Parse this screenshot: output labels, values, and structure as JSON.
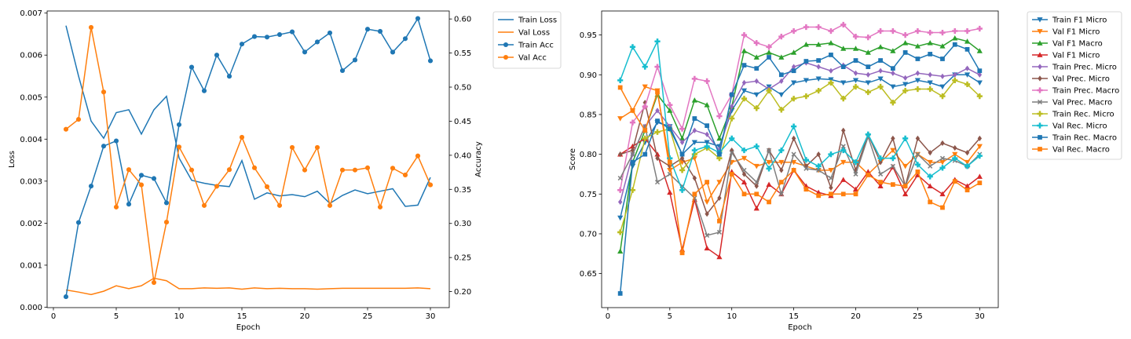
{
  "chart_data": [
    {
      "type": "line",
      "xlabel": "Epoch",
      "ylabel": "Loss",
      "y2label": "Accuracy",
      "xlim": [
        -0.5,
        31.5
      ],
      "ylim": [
        -1e-05,
        0.00705
      ],
      "y2lim": [
        0.1765,
        0.6117
      ],
      "xticks": [
        0,
        5,
        10,
        15,
        20,
        25,
        30
      ],
      "xtick_labels": [
        "0",
        "5",
        "10",
        "15",
        "20",
        "25",
        "30"
      ],
      "yticks": [
        0.0,
        0.001,
        0.002,
        0.003,
        0.004,
        0.005,
        0.006,
        0.007
      ],
      "ytick_labels": [
        "0.000",
        "0.001",
        "0.002",
        "0.003",
        "0.004",
        "0.005",
        "0.006",
        "0.007"
      ],
      "y2ticks": [
        0.2,
        0.25,
        0.3,
        0.35,
        0.4,
        0.45,
        0.5,
        0.55,
        0.6
      ],
      "y2tick_labels": [
        "0.20",
        "0.25",
        "0.30",
        "0.35",
        "0.40",
        "0.45",
        "0.50",
        "0.55",
        "0.60"
      ],
      "grid": false,
      "legend_position": "outside-right",
      "x": [
        1,
        2,
        3,
        4,
        5,
        6,
        7,
        8,
        9,
        10,
        11,
        12,
        13,
        14,
        15,
        16,
        17,
        18,
        19,
        20,
        21,
        22,
        23,
        24,
        25,
        26,
        27,
        28,
        29,
        30
      ],
      "series": [
        {
          "name": "Train Loss",
          "axis": "left",
          "color": "#1f77b4",
          "marker": "none",
          "values": [
            0.0067,
            0.0055,
            0.00443,
            0.00402,
            0.00463,
            0.0047,
            0.00412,
            0.0047,
            0.00502,
            0.00355,
            0.00302,
            0.00295,
            0.0029,
            0.00287,
            0.00349,
            0.00257,
            0.00272,
            0.00265,
            0.00268,
            0.00263,
            0.00276,
            0.00247,
            0.00266,
            0.00279,
            0.0027,
            0.00276,
            0.00282,
            0.0024,
            0.00243,
            0.00309
          ]
        },
        {
          "name": "Val Loss",
          "axis": "left",
          "color": "#ff7f0e",
          "marker": "none",
          "values": [
            0.00041,
            0.00036,
            0.0003,
            0.00038,
            0.00051,
            0.00044,
            0.00051,
            0.00069,
            0.00063,
            0.00044,
            0.00044,
            0.00046,
            0.00045,
            0.00046,
            0.00043,
            0.00046,
            0.00044,
            0.00045,
            0.00044,
            0.00044,
            0.00043,
            0.00044,
            0.00045,
            0.00045,
            0.00045,
            0.00045,
            0.00045,
            0.00045,
            0.00046,
            0.00044
          ]
        },
        {
          "name": "Train Acc",
          "axis": "right",
          "color": "#1f77b4",
          "marker": "circle",
          "values": [
            0.1925,
            0.3014,
            0.3548,
            0.4135,
            0.4211,
            0.3283,
            0.3707,
            0.3659,
            0.3302,
            0.4449,
            0.5293,
            0.4946,
            0.547,
            0.5159,
            0.5632,
            0.5742,
            0.5734,
            0.5771,
            0.5811,
            0.5515,
            0.5663,
            0.5796,
            0.5242,
            0.5398,
            0.585,
            0.5818,
            0.5513,
            0.5711,
            0.6007,
            0.5386
          ]
        },
        {
          "name": "Val Acc",
          "axis": "right",
          "color": "#ff7f0e",
          "marker": "circle",
          "values": [
            0.4382,
            0.4527,
            0.5876,
            0.4929,
            0.324,
            0.3789,
            0.3566,
            0.2133,
            0.3019,
            0.4122,
            0.3784,
            0.3263,
            0.3545,
            0.3789,
            0.4264,
            0.3816,
            0.3539,
            0.3263,
            0.4115,
            0.3784,
            0.4115,
            0.3263,
            0.3784,
            0.3784,
            0.3816,
            0.324,
            0.3811,
            0.3711,
            0.3991,
            0.3566
          ]
        }
      ]
    },
    {
      "type": "line",
      "xlabel": "Epoch",
      "ylabel": "Score",
      "xlim": [
        -0.5,
        31.5
      ],
      "ylim": [
        0.6072,
        0.9802
      ],
      "xticks": [
        0,
        5,
        10,
        15,
        20,
        25,
        30
      ],
      "xtick_labels": [
        "0",
        "5",
        "10",
        "15",
        "20",
        "25",
        "30"
      ],
      "yticks": [
        0.65,
        0.7,
        0.75,
        0.8,
        0.85,
        0.9,
        0.95
      ],
      "ytick_labels": [
        "0.65",
        "0.70",
        "0.75",
        "0.80",
        "0.85",
        "0.90",
        "0.95"
      ],
      "grid": false,
      "legend_position": "outside-right",
      "x": [
        1,
        2,
        3,
        4,
        5,
        6,
        7,
        8,
        9,
        10,
        11,
        12,
        13,
        14,
        15,
        16,
        17,
        18,
        19,
        20,
        21,
        22,
        23,
        24,
        25,
        26,
        27,
        28,
        29,
        30
      ],
      "series": [
        {
          "name": "Train F1 Micro",
          "color": "#1f77b4",
          "marker": "tri-down",
          "values": [
            0.72,
            0.785,
            0.815,
            0.84,
            0.835,
            0.8,
            0.815,
            0.815,
            0.81,
            0.855,
            0.88,
            0.875,
            0.885,
            0.875,
            0.89,
            0.893,
            0.895,
            0.894,
            0.89,
            0.893,
            0.89,
            0.895,
            0.885,
            0.888,
            0.893,
            0.89,
            0.885,
            0.9,
            0.9,
            0.89
          ]
        },
        {
          "name": "Val F1 Micro",
          "color": "#ff7f0e",
          "marker": "tri-down",
          "values": [
            0.845,
            0.855,
            0.885,
            0.88,
            0.78,
            0.79,
            0.795,
            0.74,
            0.765,
            0.79,
            0.795,
            0.785,
            0.79,
            0.79,
            0.79,
            0.785,
            0.78,
            0.78,
            0.79,
            0.79,
            0.775,
            0.79,
            0.805,
            0.785,
            0.8,
            0.79,
            0.79,
            0.8,
            0.79,
            0.81
          ]
        },
        {
          "name": "Val F1 Macro",
          "color": "#2ca02c",
          "marker": "tri-up",
          "values": [
            0.678,
            0.79,
            0.83,
            0.875,
            0.855,
            0.82,
            0.868,
            0.862,
            0.82,
            0.86,
            0.93,
            0.922,
            0.928,
            0.922,
            0.928,
            0.938,
            0.938,
            0.94,
            0.933,
            0.933,
            0.928,
            0.935,
            0.93,
            0.94,
            0.936,
            0.94,
            0.936,
            0.946,
            0.942,
            0.93
          ]
        },
        {
          "name": "Val F1 Micro",
          "color": "#d62728",
          "marker": "tri-up",
          "values": [
            0.8,
            0.81,
            0.82,
            0.8,
            0.752,
            0.68,
            0.743,
            0.682,
            0.671,
            0.778,
            0.765,
            0.732,
            0.762,
            0.75,
            0.78,
            0.76,
            0.752,
            0.748,
            0.768,
            0.756,
            0.778,
            0.76,
            0.784,
            0.75,
            0.774,
            0.76,
            0.75,
            0.768,
            0.76,
            0.772
          ]
        },
        {
          "name": "Train Prec. Micro",
          "color": "#9467bd",
          "marker": "diamond",
          "values": [
            0.74,
            0.8,
            0.835,
            0.855,
            0.835,
            0.815,
            0.83,
            0.825,
            0.805,
            0.86,
            0.89,
            0.892,
            0.882,
            0.892,
            0.91,
            0.915,
            0.91,
            0.905,
            0.912,
            0.902,
            0.9,
            0.905,
            0.902,
            0.896,
            0.902,
            0.9,
            0.898,
            0.9,
            0.908,
            0.9
          ]
        },
        {
          "name": "Val Prec. Micro",
          "color": "#8c564b",
          "marker": "diamond",
          "values": [
            0.8,
            0.805,
            0.865,
            0.795,
            0.785,
            0.795,
            0.77,
            0.725,
            0.745,
            0.805,
            0.775,
            0.76,
            0.805,
            0.78,
            0.82,
            0.785,
            0.8,
            0.758,
            0.83,
            0.78,
            0.825,
            0.79,
            0.82,
            0.76,
            0.82,
            0.802,
            0.814,
            0.808,
            0.802,
            0.82
          ]
        },
        {
          "name": "Train Prec. Macro",
          "color": "#e377c2",
          "marker": "plus",
          "values": [
            0.755,
            0.84,
            0.86,
            0.91,
            0.862,
            0.832,
            0.895,
            0.892,
            0.848,
            0.875,
            0.95,
            0.94,
            0.935,
            0.948,
            0.955,
            0.96,
            0.96,
            0.955,
            0.963,
            0.948,
            0.947,
            0.955,
            0.955,
            0.95,
            0.955,
            0.953,
            0.953,
            0.955,
            0.955,
            0.958
          ]
        },
        {
          "name": "Val Prec. Macro",
          "color": "#7f7f7f",
          "marker": "x",
          "values": [
            0.77,
            0.8,
            0.835,
            0.765,
            0.775,
            0.76,
            0.745,
            0.698,
            0.702,
            0.802,
            0.78,
            0.765,
            0.805,
            0.75,
            0.8,
            0.782,
            0.78,
            0.77,
            0.81,
            0.775,
            0.822,
            0.775,
            0.785,
            0.76,
            0.8,
            0.785,
            0.795,
            0.792,
            0.785,
            0.8
          ]
        },
        {
          "name": "Train Rec. Micro",
          "color": "#bcbd22",
          "marker": "plus",
          "values": [
            0.702,
            0.755,
            0.82,
            0.828,
            0.832,
            0.78,
            0.8,
            0.808,
            0.795,
            0.845,
            0.87,
            0.858,
            0.88,
            0.856,
            0.87,
            0.873,
            0.88,
            0.89,
            0.87,
            0.885,
            0.878,
            0.885,
            0.865,
            0.88,
            0.882,
            0.882,
            0.873,
            0.893,
            0.888,
            0.873
          ]
        },
        {
          "name": "Val Rec. Micro",
          "color": "#17becf",
          "marker": "plus",
          "values": [
            0.893,
            0.935,
            0.91,
            0.942,
            0.795,
            0.755,
            0.805,
            0.81,
            0.802,
            0.82,
            0.805,
            0.81,
            0.782,
            0.805,
            0.835,
            0.793,
            0.785,
            0.8,
            0.805,
            0.79,
            0.825,
            0.795,
            0.795,
            0.82,
            0.787,
            0.772,
            0.783,
            0.795,
            0.785,
            0.798
          ]
        },
        {
          "name": "Train Rec. Macro",
          "color": "#1f77b4",
          "marker": "square",
          "values": [
            0.625,
            0.79,
            0.8,
            0.842,
            0.832,
            0.8,
            0.845,
            0.836,
            0.8,
            0.875,
            0.912,
            0.908,
            0.922,
            0.9,
            0.905,
            0.917,
            0.918,
            0.925,
            0.91,
            0.918,
            0.91,
            0.918,
            0.908,
            0.928,
            0.92,
            0.926,
            0.92,
            0.938,
            0.932,
            0.905
          ]
        },
        {
          "name": "Val Rec. Macro",
          "color": "#ff7f0e",
          "marker": "square",
          "values": [
            0.884,
            0.855,
            0.83,
            0.878,
            0.79,
            0.676,
            0.75,
            0.765,
            0.716,
            0.775,
            0.75,
            0.75,
            0.74,
            0.765,
            0.78,
            0.756,
            0.748,
            0.75,
            0.75,
            0.75,
            0.774,
            0.765,
            0.762,
            0.76,
            0.778,
            0.74,
            0.733,
            0.766,
            0.755,
            0.764
          ]
        }
      ]
    }
  ]
}
